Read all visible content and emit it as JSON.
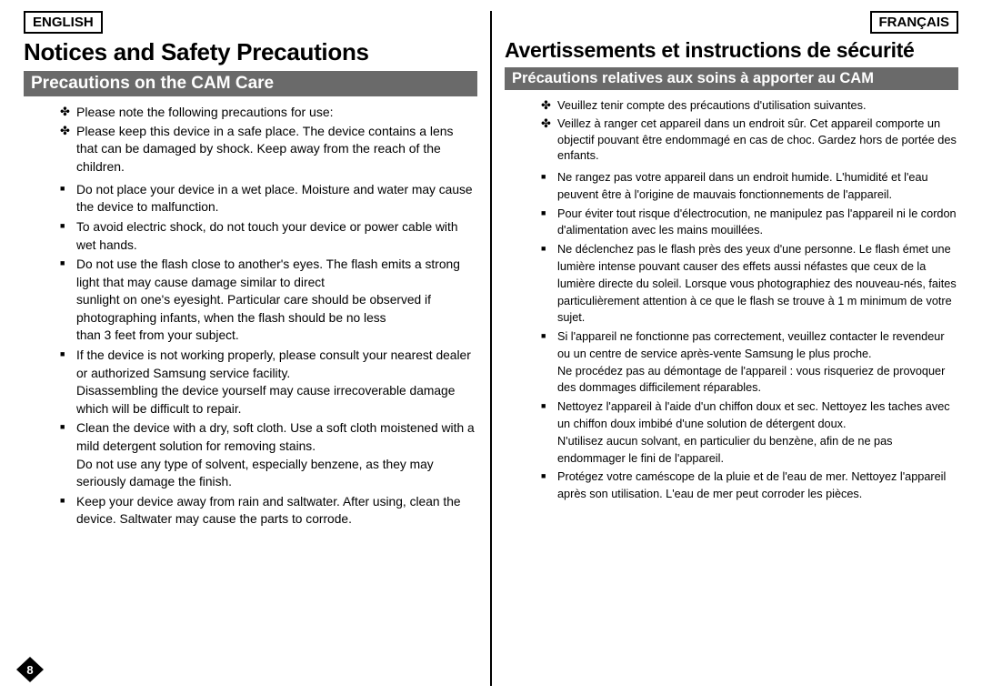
{
  "page_number": "8",
  "left": {
    "lang": "ENGLISH",
    "title": "Notices and Safety Precautions",
    "subtitle": "Precautions on the CAM Care",
    "intro": [
      "Please note the following precautions for use:",
      "Please keep this device in a safe place. The device contains a lens that can be damaged by shock. Keep away from the reach of the children."
    ],
    "items": [
      "Do not place your device in a wet place. Moisture and water may cause the device to malfunction.",
      "To avoid electric shock, do not touch your device or power cable with wet hands.",
      "Do not use the flash close to another's eyes. The flash emits a strong light that may cause damage similar to direct\nsunlight on one's eyesight. Particular care should be observed if photographing infants, when the flash should be no less\nthan 3 feet from your subject.",
      "If the device is not working properly, please consult your nearest dealer or authorized Samsung service facility.\nDisassembling the device yourself may cause irrecoverable damage which will be difficult to repair.",
      "Clean the device with a dry, soft cloth. Use a soft cloth moistened with a mild detergent solution for removing stains.\nDo not use any type of solvent, especially benzene, as they may seriously damage the finish.",
      "Keep your device away from rain and saltwater. After using, clean the device. Saltwater may cause the parts to corrode."
    ]
  },
  "right": {
    "lang": "FRANÇAIS",
    "title": "Avertissements et instructions de sécurité",
    "subtitle": "Précautions relatives aux soins à apporter au CAM",
    "intro": [
      "Veuillez tenir compte des précautions d'utilisation suivantes.",
      "Veillez à ranger cet appareil dans un endroit sûr. Cet appareil comporte un objectif pouvant être endommagé en cas de choc. Gardez hors de portée des enfants."
    ],
    "items": [
      "Ne rangez pas votre appareil dans un endroit humide. L'humidité et l'eau peuvent être à l'origine de mauvais fonctionnements de l'appareil.",
      "Pour éviter tout risque d'électrocution, ne manipulez pas l'appareil ni le cordon d'alimentation avec les mains mouillées.",
      "Ne déclenchez pas le flash près des yeux d'une personne. Le flash émet une lumière intense pouvant causer des effets aussi néfastes que ceux de la lumière directe du soleil. Lorsque vous photographiez des nouveau-nés, faites particulièrement attention à ce que le flash se trouve à 1 m minimum de votre sujet.",
      "Si l'appareil ne fonctionne pas correctement, veuillez contacter le revendeur ou un centre de service après-vente Samsung le plus proche.\nNe procédez pas au démontage de l'appareil : vous risqueriez de provoquer des dommages difficilement réparables.",
      "Nettoyez l'appareil à l'aide d'un chiffon doux et sec. Nettoyez les taches avec un chiffon doux imbibé d'une solution de détergent doux.\nN'utilisez aucun solvant, en particulier du benzène, afin de ne pas endommager le fini de l'appareil.",
      "Protégez votre caméscope de la pluie et de l'eau de mer. Nettoyez l'appareil après son utilisation. L'eau de mer peut corroder les pièces."
    ]
  }
}
